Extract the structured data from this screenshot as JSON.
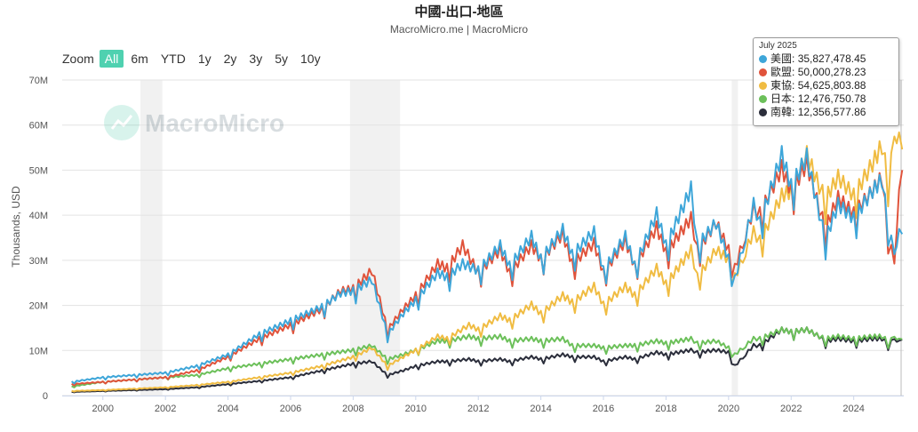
{
  "title": "中國-出口-地區",
  "subtitle": "MacroMicro.me | MacroMicro",
  "watermark": "MacroMicro",
  "zoom": {
    "label": "Zoom",
    "buttons": [
      "All",
      "6m",
      "YTD",
      "1y",
      "2y",
      "3y",
      "5y",
      "10y"
    ],
    "active": "All"
  },
  "tooltip": {
    "date": "July 2025",
    "rows": [
      {
        "name": "美國",
        "value": "35,827,478.45",
        "color": "#3ea6d9"
      },
      {
        "name": "歐盟",
        "value": "50,000,278.23",
        "color": "#e0533b"
      },
      {
        "name": "東協",
        "value": "54,625,803.88",
        "color": "#f0bc42"
      },
      {
        "name": "日本",
        "value": "12,476,750.78",
        "color": "#6cc05a"
      },
      {
        "name": "南韓",
        "value": "12,356,577.86",
        "color": "#2b2e3b"
      }
    ]
  },
  "chart_data": {
    "type": "line",
    "ylabel": "Thousands, USD",
    "xlim": [
      1998.7,
      2025.6
    ],
    "ylim": [
      0,
      70
    ],
    "y_ticks": [
      0,
      10,
      20,
      30,
      40,
      50,
      60,
      70
    ],
    "y_tick_labels": [
      "0",
      "10M",
      "20M",
      "30M",
      "40M",
      "50M",
      "60M",
      "70M"
    ],
    "x_ticks": [
      2000,
      2002,
      2004,
      2006,
      2008,
      2010,
      2012,
      2014,
      2016,
      2018,
      2020,
      2022,
      2024
    ],
    "x_tick_labels": [
      "2000",
      "2002",
      "2004",
      "2006",
      "2008",
      "2010",
      "2012",
      "2014",
      "2016",
      "2018",
      "2020",
      "2022",
      "2024"
    ],
    "grid": true,
    "legend": "tooltip top-right",
    "recession_bands": [
      [
        2001.2,
        2001.9
      ],
      [
        2007.9,
        2009.5
      ],
      [
        2020.1,
        2020.3
      ]
    ],
    "series": [
      {
        "name": "美國",
        "color": "#3ea6d9",
        "points": [
          [
            1999.0,
            3.0
          ],
          [
            2000.0,
            4.0
          ],
          [
            2001.0,
            4.5
          ],
          [
            2002.0,
            5.0
          ],
          [
            2003.0,
            6.5
          ],
          [
            2004.0,
            9.0
          ],
          [
            2005.0,
            13.5
          ],
          [
            2006.0,
            16.5
          ],
          [
            2007.0,
            19.5
          ],
          [
            2007.6,
            22.5
          ],
          [
            2008.0,
            23.0
          ],
          [
            2008.6,
            25.5
          ],
          [
            2009.1,
            13.5
          ],
          [
            2009.6,
            18.0
          ],
          [
            2010.0,
            21.0
          ],
          [
            2010.7,
            27.0
          ],
          [
            2011.0,
            26.0
          ],
          [
            2011.5,
            29.0
          ],
          [
            2012.0,
            27.5
          ],
          [
            2012.7,
            33.0
          ],
          [
            2013.0,
            28.5
          ],
          [
            2013.7,
            35.0
          ],
          [
            2014.0,
            30.0
          ],
          [
            2014.7,
            36.5
          ],
          [
            2015.0,
            31.0
          ],
          [
            2015.7,
            36.0
          ],
          [
            2016.0,
            27.5
          ],
          [
            2016.7,
            35.0
          ],
          [
            2017.0,
            28.5
          ],
          [
            2017.7,
            40.0
          ],
          [
            2018.0,
            33.0
          ],
          [
            2018.8,
            45.5
          ],
          [
            2019.0,
            33.0
          ],
          [
            2019.6,
            38.0
          ],
          [
            2020.0,
            30.0
          ],
          [
            2020.2,
            25.5
          ],
          [
            2020.8,
            42.0
          ],
          [
            2021.0,
            38.0
          ],
          [
            2021.7,
            53.0
          ],
          [
            2022.0,
            46.0
          ],
          [
            2022.5,
            52.5
          ],
          [
            2022.9,
            40.0
          ],
          [
            2023.1,
            34.5
          ],
          [
            2023.5,
            42.0
          ],
          [
            2024.0,
            39.0
          ],
          [
            2024.6,
            45.0
          ],
          [
            2024.9,
            47.5
          ],
          [
            2025.1,
            38.0
          ],
          [
            2025.3,
            30.0
          ],
          [
            2025.45,
            38.0
          ],
          [
            2025.55,
            35.8
          ]
        ]
      },
      {
        "name": "歐盟",
        "color": "#e0533b",
        "points": [
          [
            1999.0,
            2.5
          ],
          [
            2000.0,
            3.0
          ],
          [
            2001.0,
            3.5
          ],
          [
            2002.0,
            4.0
          ],
          [
            2003.0,
            5.5
          ],
          [
            2004.0,
            8.5
          ],
          [
            2005.0,
            12.5
          ],
          [
            2006.0,
            15.5
          ],
          [
            2007.0,
            19.0
          ],
          [
            2007.6,
            23.0
          ],
          [
            2008.0,
            23.5
          ],
          [
            2008.6,
            27.5
          ],
          [
            2009.1,
            14.5
          ],
          [
            2009.6,
            19.0
          ],
          [
            2010.0,
            22.0
          ],
          [
            2010.7,
            29.0
          ],
          [
            2011.0,
            28.0
          ],
          [
            2011.5,
            33.0
          ],
          [
            2012.0,
            27.0
          ],
          [
            2012.7,
            32.0
          ],
          [
            2013.0,
            27.0
          ],
          [
            2013.7,
            33.0
          ],
          [
            2014.0,
            30.0
          ],
          [
            2014.7,
            35.5
          ],
          [
            2015.0,
            29.0
          ],
          [
            2015.7,
            33.5
          ],
          [
            2016.0,
            27.0
          ],
          [
            2016.7,
            34.0
          ],
          [
            2017.0,
            28.5
          ],
          [
            2017.7,
            37.0
          ],
          [
            2018.0,
            31.5
          ],
          [
            2018.8,
            39.0
          ],
          [
            2019.0,
            32.0
          ],
          [
            2019.6,
            38.0
          ],
          [
            2020.0,
            32.0
          ],
          [
            2020.2,
            28.0
          ],
          [
            2020.8,
            41.0
          ],
          [
            2021.0,
            40.0
          ],
          [
            2021.7,
            50.0
          ],
          [
            2022.0,
            45.0
          ],
          [
            2022.5,
            51.0
          ],
          [
            2022.9,
            41.0
          ],
          [
            2023.1,
            37.0
          ],
          [
            2023.5,
            43.5
          ],
          [
            2024.0,
            40.0
          ],
          [
            2024.6,
            45.0
          ],
          [
            2024.9,
            48.0
          ],
          [
            2025.1,
            36.0
          ],
          [
            2025.3,
            28.0
          ],
          [
            2025.45,
            47.0
          ],
          [
            2025.55,
            50.0
          ]
        ]
      },
      {
        "name": "東協",
        "color": "#f0bc42",
        "points": [
          [
            1999.0,
            1.0
          ],
          [
            2000.0,
            1.2
          ],
          [
            2001.0,
            1.5
          ],
          [
            2002.0,
            1.8
          ],
          [
            2003.0,
            2.3
          ],
          [
            2004.0,
            3.0
          ],
          [
            2005.0,
            4.0
          ],
          [
            2006.0,
            5.0
          ],
          [
            2007.0,
            6.5
          ],
          [
            2008.0,
            8.5
          ],
          [
            2008.6,
            10.5
          ],
          [
            2009.1,
            6.5
          ],
          [
            2009.6,
            8.5
          ],
          [
            2010.0,
            10.0
          ],
          [
            2010.7,
            13.0
          ],
          [
            2011.0,
            12.5
          ],
          [
            2011.7,
            15.5
          ],
          [
            2012.0,
            14.5
          ],
          [
            2012.7,
            17.5
          ],
          [
            2013.0,
            16.5
          ],
          [
            2013.7,
            20.0
          ],
          [
            2014.0,
            18.0
          ],
          [
            2014.7,
            22.0
          ],
          [
            2015.0,
            20.5
          ],
          [
            2015.7,
            24.0
          ],
          [
            2016.0,
            20.0
          ],
          [
            2016.7,
            24.0
          ],
          [
            2017.0,
            22.0
          ],
          [
            2017.7,
            28.0
          ],
          [
            2018.0,
            24.5
          ],
          [
            2018.8,
            32.0
          ],
          [
            2019.0,
            26.0
          ],
          [
            2019.6,
            32.0
          ],
          [
            2020.0,
            30.0
          ],
          [
            2020.2,
            26.0
          ],
          [
            2020.8,
            36.0
          ],
          [
            2021.0,
            34.0
          ],
          [
            2021.7,
            44.0
          ],
          [
            2022.0,
            45.0
          ],
          [
            2022.5,
            53.0
          ],
          [
            2022.9,
            46.0
          ],
          [
            2023.1,
            43.5
          ],
          [
            2023.5,
            48.0
          ],
          [
            2024.0,
            44.0
          ],
          [
            2024.6,
            51.0
          ],
          [
            2024.9,
            55.0
          ],
          [
            2025.1,
            48.0
          ],
          [
            2025.3,
            55.0
          ],
          [
            2025.45,
            60.0
          ],
          [
            2025.55,
            54.6
          ]
        ]
      },
      {
        "name": "日本",
        "color": "#6cc05a",
        "points": [
          [
            1999.0,
            2.0
          ],
          [
            2000.0,
            3.0
          ],
          [
            2001.0,
            3.5
          ],
          [
            2002.0,
            4.0
          ],
          [
            2003.0,
            4.5
          ],
          [
            2004.0,
            6.0
          ],
          [
            2005.0,
            7.0
          ],
          [
            2006.0,
            8.0
          ],
          [
            2007.0,
            9.0
          ],
          [
            2008.0,
            10.0
          ],
          [
            2008.6,
            11.0
          ],
          [
            2009.1,
            8.0
          ],
          [
            2009.6,
            9.0
          ],
          [
            2010.0,
            10.0
          ],
          [
            2010.7,
            12.0
          ],
          [
            2011.0,
            12.0
          ],
          [
            2011.7,
            13.0
          ],
          [
            2012.0,
            12.5
          ],
          [
            2012.7,
            13.0
          ],
          [
            2013.0,
            12.0
          ],
          [
            2013.7,
            12.5
          ],
          [
            2014.0,
            12.0
          ],
          [
            2014.7,
            12.5
          ],
          [
            2015.0,
            11.0
          ],
          [
            2015.7,
            11.0
          ],
          [
            2016.0,
            10.5
          ],
          [
            2016.7,
            11.0
          ],
          [
            2017.0,
            11.0
          ],
          [
            2017.7,
            12.0
          ],
          [
            2018.0,
            11.5
          ],
          [
            2018.8,
            12.5
          ],
          [
            2019.0,
            11.5
          ],
          [
            2019.6,
            12.0
          ],
          [
            2020.0,
            10.5
          ],
          [
            2020.2,
            9.0
          ],
          [
            2020.8,
            12.5
          ],
          [
            2021.0,
            12.5
          ],
          [
            2021.7,
            14.5
          ],
          [
            2022.0,
            14.0
          ],
          [
            2022.5,
            14.5
          ],
          [
            2022.9,
            13.0
          ],
          [
            2023.1,
            12.5
          ],
          [
            2023.5,
            13.0
          ],
          [
            2024.0,
            12.5
          ],
          [
            2024.6,
            13.0
          ],
          [
            2024.9,
            13.0
          ],
          [
            2025.1,
            12.0
          ],
          [
            2025.3,
            12.5
          ],
          [
            2025.45,
            13.0
          ],
          [
            2025.55,
            12.5
          ]
        ]
      },
      {
        "name": "南韓",
        "color": "#2b2e3b",
        "points": [
          [
            1999.0,
            0.8
          ],
          [
            2000.0,
            1.0
          ],
          [
            2001.0,
            1.2
          ],
          [
            2002.0,
            1.4
          ],
          [
            2003.0,
            1.8
          ],
          [
            2004.0,
            2.5
          ],
          [
            2005.0,
            3.2
          ],
          [
            2006.0,
            4.0
          ],
          [
            2007.0,
            5.5
          ],
          [
            2008.0,
            7.0
          ],
          [
            2008.6,
            7.5
          ],
          [
            2009.1,
            4.5
          ],
          [
            2009.6,
            5.5
          ],
          [
            2010.0,
            6.5
          ],
          [
            2010.7,
            7.5
          ],
          [
            2011.0,
            7.5
          ],
          [
            2011.7,
            8.0
          ],
          [
            2012.0,
            7.5
          ],
          [
            2012.7,
            8.0
          ],
          [
            2013.0,
            7.5
          ],
          [
            2013.7,
            8.5
          ],
          [
            2014.0,
            8.0
          ],
          [
            2014.7,
            9.0
          ],
          [
            2015.0,
            8.5
          ],
          [
            2015.7,
            8.5
          ],
          [
            2016.0,
            7.5
          ],
          [
            2016.7,
            8.5
          ],
          [
            2017.0,
            8.0
          ],
          [
            2017.7,
            9.5
          ],
          [
            2018.0,
            9.0
          ],
          [
            2018.8,
            10.0
          ],
          [
            2019.0,
            9.5
          ],
          [
            2019.6,
            10.0
          ],
          [
            2020.0,
            9.5
          ],
          [
            2020.2,
            6.5
          ],
          [
            2020.8,
            11.0
          ],
          [
            2021.0,
            11.0
          ],
          [
            2021.7,
            14.5
          ],
          [
            2022.0,
            14.0
          ],
          [
            2022.5,
            14.5
          ],
          [
            2022.9,
            13.0
          ],
          [
            2023.1,
            12.0
          ],
          [
            2023.5,
            12.5
          ],
          [
            2024.0,
            12.0
          ],
          [
            2024.6,
            12.5
          ],
          [
            2024.9,
            12.5
          ],
          [
            2025.1,
            11.5
          ],
          [
            2025.3,
            12.0
          ],
          [
            2025.45,
            12.5
          ],
          [
            2025.55,
            12.4
          ]
        ]
      }
    ]
  }
}
